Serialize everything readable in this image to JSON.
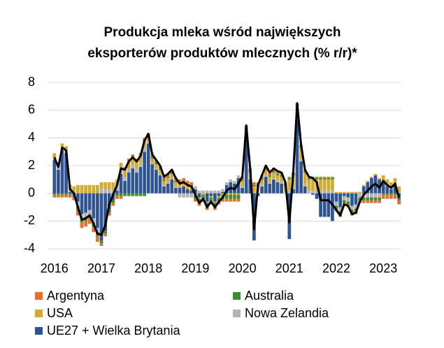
{
  "chart_data": {
    "type": "bar",
    "title": [
      "Produkcja mleka wśród największych",
      "eksporterów produktów mlecznych (% r/r)*"
    ],
    "categories": [
      "2016",
      null,
      null,
      null,
      null,
      null,
      null,
      null,
      null,
      null,
      null,
      null,
      "2017",
      null,
      null,
      null,
      null,
      null,
      null,
      null,
      null,
      null,
      null,
      null,
      "2018",
      null,
      null,
      null,
      null,
      null,
      null,
      null,
      null,
      null,
      null,
      null,
      "2019",
      null,
      null,
      null,
      null,
      null,
      null,
      null,
      null,
      null,
      null,
      null,
      "2020",
      null,
      null,
      null,
      null,
      null,
      null,
      null,
      null,
      null,
      null,
      null,
      "2021",
      null,
      null,
      null,
      null,
      null,
      null,
      null,
      null,
      null,
      null,
      null,
      "2022",
      null,
      null,
      null,
      null,
      null,
      null,
      null,
      null,
      null,
      null,
      null,
      "2023",
      null,
      null,
      null,
      null
    ],
    "series": [
      {
        "name": "Argentyna",
        "color": "#e2702f",
        "values": [
          -0.2,
          -0.2,
          -0.2,
          -0.2,
          -0.2,
          -0.2,
          -0.4,
          -0.4,
          -0.4,
          -0.4,
          -0.4,
          -0.4,
          -0.2,
          -0.2,
          -0.2,
          -0.2,
          -0.2,
          -0.2,
          0.2,
          0.2,
          0.2,
          0.2,
          0.2,
          0.2,
          0.2,
          0.2,
          0.2,
          0.2,
          0.2,
          0.2,
          0.2,
          0.2,
          0.2,
          0.2,
          0.2,
          0.2,
          -0.2,
          -0.2,
          -0.2,
          -0.2,
          -0.2,
          -0.2,
          -0.2,
          -0.2,
          -0.2,
          -0.2,
          -0.2,
          -0.2,
          0.2,
          0.2,
          0.2,
          0.2,
          0.2,
          0.2,
          0.2,
          0.2,
          0.2,
          0.2,
          0.2,
          0.2,
          0.1,
          0.1,
          0.1,
          0.1,
          0.1,
          0.1,
          0.1,
          0.1,
          0.1,
          0.1,
          0.1,
          0.1,
          -0.2,
          -0.2,
          -0.2,
          -0.2,
          -0.2,
          -0.2,
          -0.2,
          -0.2,
          -0.2,
          -0.2,
          -0.2,
          -0.2,
          -0.3,
          -0.3,
          -0.3,
          -0.3,
          -0.3
        ]
      },
      {
        "name": "Australia",
        "color": "#3e8e2f",
        "values": [
          -0.1,
          -0.1,
          -0.1,
          -0.1,
          -0.1,
          -0.1,
          -0.3,
          -0.3,
          -0.3,
          -0.3,
          -0.3,
          -0.3,
          -0.2,
          -0.2,
          -0.2,
          -0.2,
          -0.2,
          -0.2,
          -0.2,
          -0.2,
          -0.2,
          -0.2,
          -0.2,
          -0.2,
          0.1,
          0.1,
          0.1,
          0.1,
          0.1,
          0.1,
          0.1,
          0.1,
          0.1,
          0.1,
          0.1,
          0.1,
          -0.3,
          -0.3,
          -0.3,
          -0.3,
          -0.3,
          -0.3,
          -0.3,
          -0.3,
          -0.3,
          -0.3,
          -0.3,
          -0.3,
          0.1,
          0.1,
          0.1,
          0.1,
          0.1,
          0.1,
          0.1,
          0.1,
          0.1,
          0.1,
          0.1,
          0.1,
          0.1,
          0.1,
          0.1,
          0.1,
          0.1,
          0.1,
          0.1,
          0.1,
          0.1,
          0.1,
          0.1,
          0.1,
          -0.2,
          -0.2,
          -0.2,
          -0.2,
          -0.2,
          -0.2,
          -0.2,
          -0.2,
          -0.2,
          -0.2,
          -0.2,
          -0.2,
          -0.1,
          -0.1,
          -0.1,
          -0.1,
          -0.1
        ]
      },
      {
        "name": "USA",
        "color": "#d6a930",
        "values": [
          0.3,
          0.3,
          0.3,
          0.3,
          0.3,
          0.3,
          0.6,
          0.6,
          0.6,
          0.6,
          0.6,
          0.6,
          0.5,
          0.5,
          0.5,
          0.5,
          0.5,
          0.5,
          0.5,
          0.5,
          0.5,
          0.5,
          0.5,
          0.5,
          0.3,
          0.3,
          0.3,
          0.3,
          0.3,
          0.3,
          0.3,
          0.3,
          0.3,
          0.3,
          0.3,
          0.3,
          -0.1,
          -0.1,
          -0.1,
          -0.1,
          -0.1,
          -0.1,
          -0.1,
          -0.1,
          -0.1,
          -0.1,
          -0.1,
          -0.1,
          0.4,
          0.4,
          0.4,
          0.4,
          0.4,
          0.4,
          0.4,
          0.4,
          0.4,
          0.4,
          0.4,
          0.4,
          0.8,
          0.8,
          0.8,
          0.8,
          0.8,
          0.8,
          0.8,
          0.8,
          0.8,
          0.8,
          0.8,
          0.8,
          0.1,
          0.1,
          0.1,
          0.1,
          0.1,
          0.1,
          0.1,
          0.1,
          0.1,
          0.1,
          0.1,
          0.1,
          0.4,
          0.4,
          0.4,
          0.4,
          0.4
        ]
      },
      {
        "name": "Nowa Zelandia",
        "color": "#b4b4b4",
        "values": [
          0.2,
          0.2,
          0.2,
          0.2,
          0.2,
          0.2,
          -0.3,
          -0.3,
          -0.3,
          -0.3,
          -0.3,
          -0.3,
          0.3,
          0.3,
          0.3,
          0.3,
          0.3,
          0.3,
          0.3,
          0.3,
          0.3,
          0.3,
          0.3,
          0.3,
          0.1,
          0.1,
          0.1,
          0.1,
          0.1,
          0.1,
          0.1,
          0.1,
          -0.3,
          -0.3,
          -0.3,
          -0.3,
          0.2,
          0.2,
          0.2,
          0.2,
          0.2,
          0.2,
          0.2,
          0.2,
          0.2,
          0.2,
          0.2,
          0.2,
          0.1,
          0.1,
          0.1,
          0.1,
          0.1,
          0.1,
          0.1,
          0.1,
          0.1,
          0.1,
          0.1,
          0.1,
          0.2,
          0.2,
          0.2,
          0.2,
          0.2,
          0.2,
          0.2,
          0.2,
          0.2,
          0.2,
          0.2,
          0.2,
          -0.3,
          -0.3,
          -0.3,
          -0.3,
          -0.3,
          -0.3,
          -0.3,
          -0.3,
          -0.3,
          -0.3,
          -0.3,
          -0.3,
          0.1,
          0.1,
          0.1,
          0.1,
          0.1
        ]
      },
      {
        "name": "UE27 + Wielka Brytania",
        "color": "#2e5494",
        "values": [
          2.4,
          1.7,
          3.1,
          2.9,
          0.1,
          -0.2,
          -0.6,
          -1.5,
          -1.4,
          -1.2,
          -1.8,
          -2.5,
          -3.4,
          -2.7,
          -1.2,
          -0.5,
          0.2,
          1.4,
          0.9,
          1.5,
          1.8,
          1.5,
          1.9,
          3.0,
          3.6,
          2.1,
          1.7,
          1.3,
          0.5,
          0.7,
          1.0,
          0.4,
          0.4,
          0.5,
          0.3,
          0.2,
          0.3,
          -0.3,
          0.0,
          -0.6,
          -0.2,
          -0.6,
          -0.2,
          0.1,
          0.6,
          0.8,
          0.7,
          1.1,
          0.4,
          4.1,
          1.0,
          -3.4,
          -0.2,
          0.5,
          1.2,
          0.7,
          1.0,
          0.8,
          0.7,
          0.0,
          -3.3,
          0.3,
          5.3,
          2.3,
          0.5,
          0.0,
          -0.1,
          -0.4,
          -1.7,
          -1.7,
          -1.7,
          -2.0,
          -0.6,
          -1.0,
          -0.2,
          -0.3,
          -0.9,
          -0.8,
          0.0,
          0.5,
          0.8,
          1.1,
          1.3,
          1.0,
          0.8,
          0.5,
          0.3,
          0.6,
          -0.4
        ]
      }
    ],
    "line": {
      "color": "#000000",
      "values": [
        2.6,
        1.9,
        3.3,
        3.1,
        0.3,
        0.0,
        -1.0,
        -1.9,
        -1.8,
        -1.6,
        -2.2,
        -2.9,
        -3.0,
        -2.3,
        -0.8,
        -0.1,
        0.6,
        1.8,
        1.7,
        2.3,
        2.6,
        2.3,
        2.7,
        3.8,
        4.3,
        2.8,
        2.4,
        2.0,
        1.2,
        1.4,
        1.7,
        1.1,
        0.7,
        0.8,
        0.6,
        0.5,
        -0.1,
        -0.7,
        -0.4,
        -1.0,
        -0.6,
        -1.0,
        -0.6,
        -0.3,
        0.2,
        0.4,
        0.3,
        0.7,
        1.2,
        4.9,
        1.8,
        -2.6,
        0.6,
        1.3,
        2.0,
        1.5,
        1.8,
        1.6,
        1.5,
        0.8,
        -2.1,
        1.5,
        6.5,
        3.5,
        1.7,
        1.2,
        1.1,
        0.8,
        -0.5,
        -0.5,
        -0.5,
        -0.8,
        -1.2,
        -1.6,
        -0.8,
        -0.9,
        -1.5,
        -1.4,
        -0.6,
        -0.1,
        0.2,
        0.5,
        0.7,
        0.4,
        0.9,
        0.6,
        0.4,
        0.7,
        -0.3
      ]
    },
    "ylim": [
      -4,
      8
    ],
    "yticks": [
      -4,
      -2,
      0,
      2,
      4,
      6,
      8
    ],
    "grid": true
  }
}
